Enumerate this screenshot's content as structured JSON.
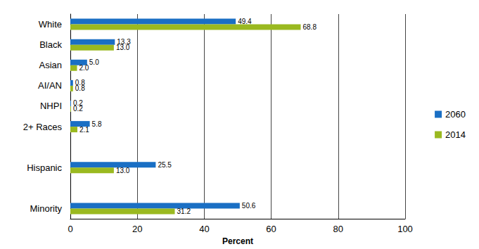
{
  "chart_data": {
    "type": "bar",
    "orientation": "horizontal",
    "categories": [
      "White",
      "Black",
      "Asian",
      "AI/AN",
      "NHPI",
      "2+ Races",
      null,
      "Hispanic",
      null,
      "Minority"
    ],
    "series": [
      {
        "name": "2060",
        "color": "#1a6fc4",
        "values": [
          49.4,
          13.3,
          5.0,
          0.8,
          0.2,
          5.8,
          null,
          25.5,
          null,
          50.6
        ],
        "value_labels": [
          "49.4",
          "13.3",
          "5.0",
          "0.8",
          "0.2",
          "5.8",
          null,
          "25.5",
          null,
          "50.6"
        ]
      },
      {
        "name": "2014",
        "color": "#9ab920",
        "values": [
          68.8,
          13.0,
          2.0,
          0.8,
          0.2,
          2.1,
          null,
          13.0,
          null,
          31.2
        ],
        "value_labels": [
          "68.8",
          "13.0",
          "2.0",
          "0.8",
          "0.2",
          "2.1",
          null,
          "13.0",
          null,
          "31.2"
        ]
      }
    ],
    "xlabel": "Percent",
    "xlim": [
      0,
      100
    ],
    "xticks": [
      0,
      20,
      40,
      60,
      80,
      100
    ],
    "grid": true,
    "legend": "right",
    "data_labels": true
  }
}
